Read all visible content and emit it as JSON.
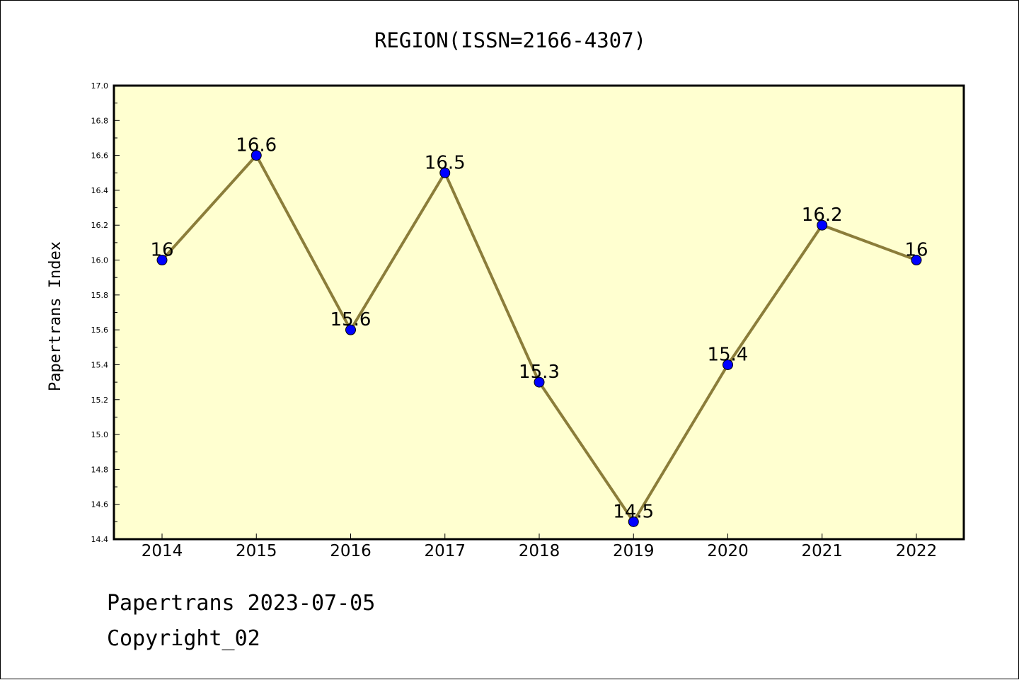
{
  "chart_data": {
    "type": "line",
    "title": "REGION(ISSN=2166-4307)",
    "xlabel": "",
    "ylabel": "Papertrans Index",
    "x": [
      "2014",
      "2015",
      "2016",
      "2017",
      "2018",
      "2019",
      "2020",
      "2021",
      "2022"
    ],
    "series": [
      {
        "values": [
          16,
          16.6,
          15.6,
          16.5,
          15.3,
          14.5,
          15.4,
          16.2,
          16
        ],
        "data_labels": [
          "16",
          "16.6",
          "15.6",
          "16.5",
          "15.3",
          "14.5",
          "15.4",
          "16.2",
          "16"
        ]
      }
    ],
    "ylim": [
      14.4,
      17.0
    ],
    "yticks": [
      "14.4",
      "14.6",
      "14.8",
      "15.0",
      "15.2",
      "15.4",
      "15.6",
      "15.8",
      "16.0",
      "16.2",
      "16.4",
      "16.6",
      "16.8",
      "17.0"
    ],
    "grid": false,
    "legend": "none",
    "colors": {
      "plot_background": "#ffffd0",
      "line": "#8b7d3a",
      "marker": "#0000ff"
    }
  },
  "footer": {
    "line1": "Papertrans 2023-07-05",
    "line2": "Copyright_02"
  }
}
